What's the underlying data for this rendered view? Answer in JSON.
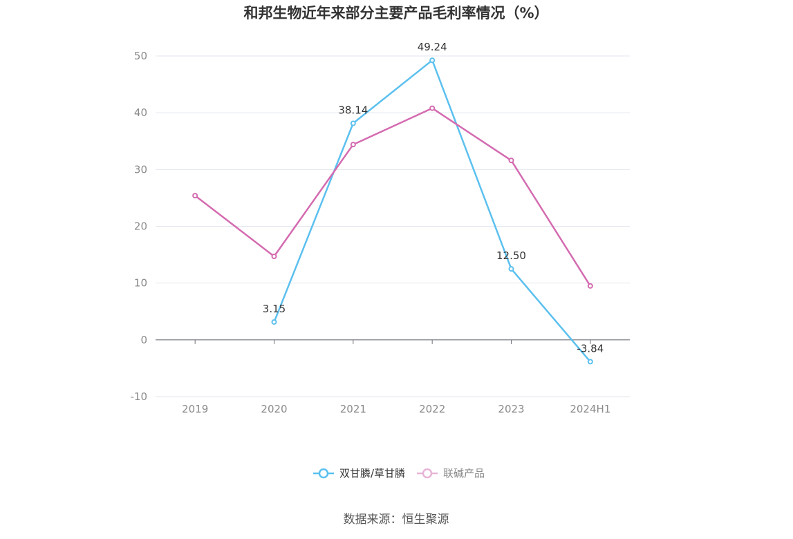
{
  "chart_data": {
    "type": "line",
    "title": "和邦生物近年来部分主要产品毛利率情况（%）",
    "categories": [
      "2019",
      "2020",
      "2021",
      "2022",
      "2023",
      "2024H1"
    ],
    "ylim": [
      -10,
      50
    ],
    "yticks": [
      -10,
      0,
      10,
      20,
      30,
      40,
      50
    ],
    "grid": true,
    "legend_position": "bottom-center",
    "series": [
      {
        "name": "双甘膦/草甘膦",
        "color": "#5bc0ef",
        "values": [
          null,
          3.15,
          38.14,
          49.24,
          12.5,
          -3.84
        ],
        "labels": [
          null,
          "3.15",
          "38.14",
          "49.24",
          "12.50",
          "-3.84"
        ]
      },
      {
        "name": "联碱产品",
        "color": "#d46bb0",
        "values": [
          25.4,
          14.7,
          34.4,
          40.8,
          31.6,
          9.5
        ],
        "labels": [
          null,
          null,
          null,
          null,
          null,
          null
        ]
      }
    ],
    "source": "数据来源：恒生聚源"
  }
}
